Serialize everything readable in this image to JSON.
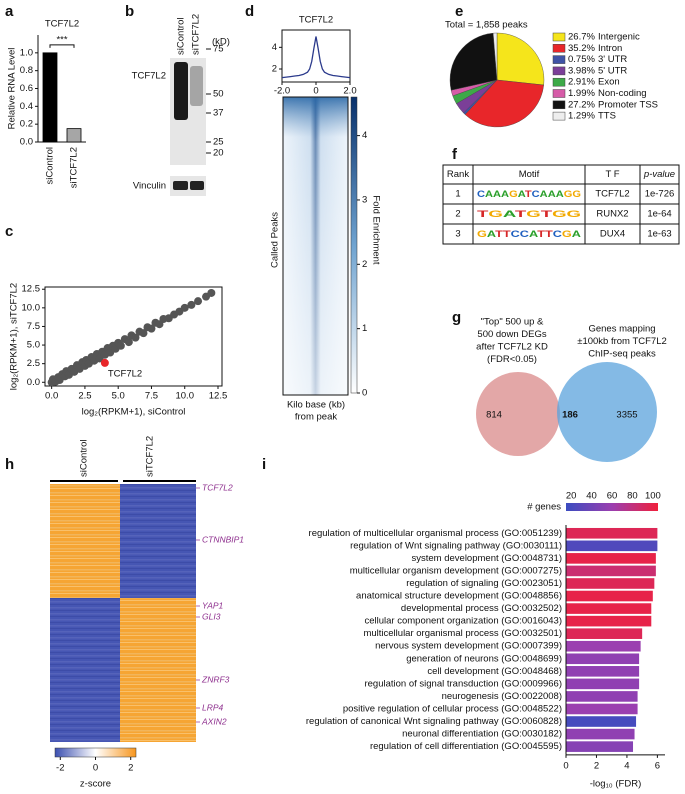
{
  "panel_labels": [
    "a",
    "b",
    "c",
    "d",
    "e",
    "f",
    "g",
    "h",
    "i"
  ],
  "chart_data": [
    {
      "type": "bar",
      "title": "TCF7L2",
      "ylabel": "Relative RNA Level",
      "categories": [
        "siControl",
        "siTCF7L2"
      ],
      "values": [
        1.0,
        0.15
      ],
      "colors": [
        "#000000",
        "#a6a6a6"
      ],
      "ylim": [
        0,
        1.2
      ],
      "yticks": [
        {
          "value": 0,
          "label": "0.0"
        },
        {
          "value": 0.2,
          "label": "0.2"
        },
        {
          "value": 0.4,
          "label": "0.4"
        },
        {
          "value": 0.6,
          "label": "0.6"
        },
        {
          "value": 0.8,
          "label": "0.8"
        },
        {
          "value": 1.0,
          "label": "1.0"
        }
      ],
      "annotation": "***"
    },
    {
      "type": "scatter",
      "xlabel": "log₂(RPKM+1), siControl",
      "ylabel": "log₂(RPKM+1), siTCF7L2",
      "color": "#555555",
      "x": [
        0.0,
        0.1,
        0.3,
        0.5,
        0.6,
        0.8,
        1.0,
        1.1,
        1.3,
        1.5,
        1.7,
        1.9,
        2.1,
        2.3,
        2.5,
        2.6,
        2.8,
        3.0,
        3.2,
        3.4,
        3.6,
        3.8,
        4.0,
        4.2,
        4.4,
        4.6,
        4.8,
        5.0,
        5.2,
        5.5,
        5.8,
        6.0,
        6.3,
        6.6,
        6.9,
        7.2,
        7.5,
        7.8,
        8.1,
        8.4,
        8.8,
        9.2,
        9.6,
        10.0,
        10.5,
        11.0,
        11.6,
        12.0
      ],
      "values": [
        0.0,
        0.4,
        0.1,
        0.7,
        0.3,
        1.1,
        0.8,
        1.5,
        1.0,
        1.8,
        1.4,
        2.3,
        1.8,
        2.7,
        2.2,
        3.0,
        2.5,
        3.4,
        2.9,
        3.8,
        3.2,
        4.1,
        3.7,
        4.6,
        4.0,
        4.9,
        4.5,
        5.3,
        4.9,
        5.8,
        5.4,
        6.3,
        6.0,
        6.8,
        6.6,
        7.4,
        7.2,
        8.0,
        7.8,
        8.5,
        8.6,
        9.1,
        9.5,
        10.0,
        10.4,
        10.9,
        11.5,
        12.0
      ],
      "highlight": {
        "label": "TCF7L2",
        "x": 4.0,
        "y": 2.6,
        "color": "#e8262a"
      },
      "xlim": [
        -0.5,
        12.8
      ],
      "ylim": [
        -0.5,
        12.8
      ],
      "xticks": [
        {
          "value": 0,
          "label": "0.0"
        },
        {
          "value": 2.5,
          "label": "2.5"
        },
        {
          "value": 5,
          "label": "5.0"
        },
        {
          "value": 7.5,
          "label": "7.5"
        },
        {
          "value": 10,
          "label": "10.0"
        },
        {
          "value": 12.5,
          "label": "12.5"
        }
      ],
      "yticks": [
        {
          "value": 0,
          "label": "0.0"
        },
        {
          "value": 2.5,
          "label": "2.5"
        },
        {
          "value": 5,
          "label": "5.0"
        },
        {
          "value": 7.5,
          "label": "7.5"
        },
        {
          "value": 10,
          "label": "10.0"
        },
        {
          "value": 12.5,
          "label": "12.5"
        }
      ]
    },
    {
      "type": "line",
      "title": "TCF7L2",
      "color": "#2b3a8c",
      "x": [
        -2,
        -1.75,
        -1.5,
        -1.25,
        -1,
        -0.75,
        -0.5,
        -0.375,
        -0.25,
        -0.125,
        0,
        0.125,
        0.25,
        0.375,
        0.5,
        0.75,
        1,
        1.25,
        1.5,
        1.75,
        2
      ],
      "values": [
        1.2,
        1.25,
        1.3,
        1.35,
        1.4,
        1.5,
        1.7,
        2.0,
        2.7,
        3.9,
        5.0,
        3.9,
        2.7,
        2.0,
        1.7,
        1.5,
        1.4,
        1.35,
        1.3,
        1.25,
        1.2
      ],
      "xlim": [
        -2,
        2
      ],
      "ylim": [
        0.8,
        5.6
      ],
      "xticks": [
        {
          "value": -2,
          "label": "-2.0"
        },
        0,
        {
          "value": 2,
          "label": "2.0"
        }
      ],
      "yticks": [
        2,
        4
      ],
      "heatmap": {
        "ylabel": "Called Peaks",
        "xlabel": [
          "Kilo base (kb)",
          "from peak"
        ],
        "colorbar_label": "Fold Enrichment",
        "colorbar_lim": [
          0,
          4.6
        ],
        "colorbar_ticks": [
          0,
          1,
          2,
          3,
          4
        ]
      }
    },
    {
      "type": "pie",
      "title": "Total = 1,858 peaks",
      "categories": [
        "Intergenic",
        "Intron",
        "3' UTR",
        "5' UTR",
        "Exon",
        "Non-coding",
        "Promoter TSS",
        "TTS"
      ],
      "values": [
        26.7,
        35.2,
        0.75,
        3.98,
        2.91,
        1.99,
        27.2,
        1.29
      ],
      "value_labels": [
        "26.7%",
        "35.2%",
        "0.75%",
        "3.98%",
        "2.91%",
        "1.99%",
        "27.2%",
        "1.29%"
      ],
      "colors": [
        "#f5e51b",
        "#e8262a",
        "#3f53a6",
        "#7b3f98",
        "#3daa48",
        "#d65ca8",
        "#111111",
        "#eeeeee"
      ]
    },
    {
      "type": "bar",
      "orientation": "horizontal",
      "xlabel": "-log₁₀ (FDR)",
      "categories": [
        "regulation of multicellular organismal process (GO:0051239)",
        "regulation of Wnt signaling pathway (GO:0030111)",
        "system development (GO:0048731)",
        "multicellular organism development (GO:0007275)",
        "regulation of signaling (GO:0023051)",
        "anatomical structure development (GO:0048856)",
        "developmental process (GO:0032502)",
        "cellular component organization (GO:0016043)",
        "multicellular organismal process (GO:0032501)",
        "nervous system development (GO:0007399)",
        "generation of neurons (GO:0048699)",
        "cell development (GO:0048468)",
        "regulation of signal transduction (GO:0009966)",
        "neurogenesis (GO:0022008)",
        "positive regulation of cellular process (GO:0048522)",
        "regulation of canonical Wnt signaling pathway (GO:0060828)",
        "neuronal differentiation (GO:0030182)",
        "regulation of cell differentiation (GO:0045595)"
      ],
      "values": [
        6.0,
        6.0,
        5.9,
        5.9,
        5.8,
        5.7,
        5.6,
        5.6,
        5.0,
        4.9,
        4.8,
        4.8,
        4.8,
        4.7,
        4.7,
        4.6,
        4.5,
        4.4
      ],
      "gene_counts": [
        95,
        25,
        100,
        85,
        95,
        100,
        100,
        100,
        95,
        60,
        55,
        55,
        55,
        55,
        60,
        20,
        55,
        50
      ],
      "highlighted": [
        false,
        true,
        false,
        false,
        false,
        false,
        false,
        false,
        false,
        false,
        false,
        false,
        false,
        false,
        false,
        true,
        false,
        false
      ],
      "highlight_color": "#9b2d9b",
      "xlim": [
        0,
        6.5
      ],
      "xticks": [
        0,
        2,
        4,
        6
      ],
      "colorbar": {
        "title": "# genes",
        "lim": [
          15,
          105
        ],
        "ticks": [
          20,
          40,
          60,
          80,
          100
        ],
        "colors": [
          "#3b4cc0",
          "#9b3fb0",
          "#f0203c"
        ]
      }
    }
  ],
  "western_blot": {
    "lanes": [
      "siControl",
      "siTCF7L2"
    ],
    "proteins": [
      "TCF7L2",
      "Vinculin"
    ],
    "unit": "(kD)",
    "markers": [
      75,
      50,
      37,
      25,
      20
    ]
  },
  "motif_table": {
    "headers": [
      "Rank",
      "Motif",
      "T F",
      "p-value"
    ],
    "rows": [
      [
        1,
        "CAAAGATCAAAGG",
        "TCF7L2",
        "1e-726"
      ],
      [
        2,
        "TGATGTGG",
        "RUNX2",
        "1e-64"
      ],
      [
        3,
        "GATTCCATTCGA",
        "DUX4",
        "1e-63"
      ]
    ]
  },
  "venn": {
    "left_label": [
      "\"Top\" 500 up &",
      "500 down DEGs",
      "after TCF7L2 KD",
      "(FDR<0.05)"
    ],
    "right_label": [
      "Genes mapping",
      "±100kb from TCF7L2",
      "ChIP-seq peaks"
    ],
    "left_only": 814,
    "overlap": 186,
    "right_only": 3355
  },
  "heatmap": {
    "columns": [
      "siControl",
      "siTCF7L2"
    ],
    "genes": [
      "TCF7L2",
      "CTNNBIP1",
      "YAP1",
      "GLI3",
      "ZNRF3",
      "LRP4",
      "AXIN2"
    ],
    "colorbar_label": "z-score",
    "colorbar_lim": [
      -2.3,
      2.3
    ],
    "colorbar_ticks": [
      -2,
      0,
      2
    ]
  }
}
